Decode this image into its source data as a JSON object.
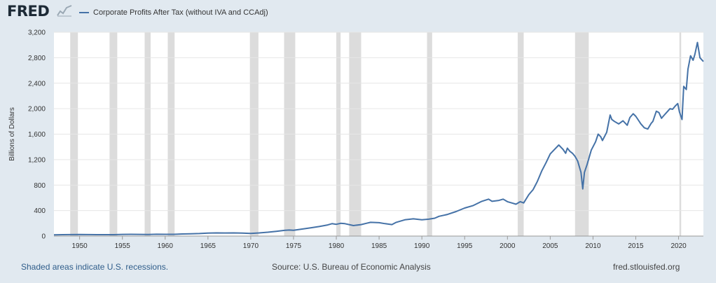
{
  "header": {
    "logo_text": "FRED",
    "logo_icon": "chart-line-icon"
  },
  "footer": {
    "recession_note": "Shaded areas indicate U.S. recessions.",
    "source": "Source: U.S. Bureau of Economic Analysis",
    "site": "fred.stlouisfed.org"
  },
  "colors": {
    "line": "#4572a7",
    "recession": "#dcdcdc",
    "plot_bg": "#ffffff",
    "grid": "#e6e6e6",
    "page_bg": "#e1e9f0"
  },
  "chart_data": {
    "type": "line",
    "title": "",
    "xlabel": "",
    "ylabel": "Billions of Dollars",
    "xlim": [
      1947.0,
      2022.9
    ],
    "ylim": [
      0,
      3200
    ],
    "x_ticks": [
      1950,
      1955,
      1960,
      1965,
      1970,
      1975,
      1980,
      1985,
      1990,
      1995,
      2000,
      2005,
      2010,
      2015,
      2020
    ],
    "y_ticks": [
      0,
      400,
      800,
      1200,
      1600,
      2000,
      2400,
      2800,
      3200
    ],
    "y_tick_labels": [
      "0",
      "400",
      "800",
      "1,200",
      "1,600",
      "2,000",
      "2,400",
      "2,800",
      "3,200"
    ],
    "grid": true,
    "legend_position": "top-left",
    "recessions": [
      [
        1948.9,
        1949.8
      ],
      [
        1953.5,
        1954.4
      ],
      [
        1957.6,
        1958.3
      ],
      [
        1960.3,
        1961.1
      ],
      [
        1969.9,
        1970.9
      ],
      [
        1973.9,
        1975.2
      ],
      [
        1980.0,
        1980.5
      ],
      [
        1981.5,
        1982.9
      ],
      [
        1990.6,
        1991.2
      ],
      [
        2001.2,
        2001.9
      ],
      [
        2007.9,
        2009.5
      ],
      [
        2020.1,
        2020.3
      ]
    ],
    "series": [
      {
        "name": "Corporate Profits After Tax (without IVA and CCAdj)",
        "x": [
          1947.0,
          1948.0,
          1949.0,
          1950.0,
          1951.0,
          1952.0,
          1953.0,
          1954.0,
          1955.0,
          1956.0,
          1957.0,
          1958.0,
          1959.0,
          1960.0,
          1961.0,
          1962.0,
          1963.0,
          1964.0,
          1965.0,
          1966.0,
          1967.0,
          1968.0,
          1969.0,
          1970.0,
          1971.0,
          1972.0,
          1973.0,
          1974.0,
          1974.5,
          1975.0,
          1976.0,
          1977.0,
          1978.0,
          1979.0,
          1979.5,
          1980.0,
          1980.5,
          1981.0,
          1982.0,
          1982.9,
          1983.5,
          1984.0,
          1985.0,
          1985.7,
          1986.5,
          1987.0,
          1988.0,
          1989.0,
          1990.0,
          1990.8,
          1991.5,
          1992.0,
          1993.0,
          1994.0,
          1995.0,
          1996.0,
          1997.0,
          1997.8,
          1998.2,
          1999.0,
          1999.5,
          2000.0,
          2000.5,
          2001.0,
          2001.5,
          2001.9,
          2002.5,
          2003.0,
          2003.5,
          2004.0,
          2004.5,
          2005.0,
          2005.5,
          2006.0,
          2006.5,
          2006.8,
          2007.0,
          2007.3,
          2007.6,
          2007.9,
          2008.2,
          2008.6,
          2008.8,
          2009.0,
          2009.3,
          2009.8,
          2010.3,
          2010.6,
          2010.9,
          2011.1,
          2011.3,
          2011.6,
          2012.0,
          2012.2,
          2012.5,
          2013.0,
          2013.5,
          2014.0,
          2014.3,
          2014.7,
          2015.0,
          2015.3,
          2015.6,
          2016.0,
          2016.4,
          2016.8,
          2017.0,
          2017.4,
          2017.7,
          2018.0,
          2018.2,
          2018.6,
          2019.0,
          2019.3,
          2019.6,
          2019.9,
          2020.1,
          2020.4,
          2020.6,
          2020.9,
          2021.1,
          2021.4,
          2021.7,
          2021.9,
          2022.2,
          2022.5,
          2022.9
        ],
        "values": [
          20,
          22,
          23,
          25,
          23,
          22,
          22,
          22,
          26,
          27,
          26,
          24,
          29,
          28,
          28,
          33,
          36,
          40,
          46,
          50,
          48,
          50,
          47,
          42,
          50,
          60,
          75,
          90,
          95,
          90,
          110,
          130,
          150,
          175,
          195,
          185,
          200,
          195,
          165,
          180,
          200,
          215,
          210,
          195,
          180,
          215,
          255,
          270,
          255,
          265,
          280,
          310,
          340,
          385,
          440,
          480,
          545,
          580,
          545,
          560,
          580,
          540,
          520,
          500,
          540,
          520,
          650,
          730,
          860,
          1020,
          1150,
          1290,
          1360,
          1430,
          1360,
          1300,
          1380,
          1330,
          1300,
          1250,
          1180,
          1000,
          740,
          1000,
          1120,
          1350,
          1480,
          1600,
          1560,
          1500,
          1550,
          1630,
          1900,
          1830,
          1800,
          1760,
          1810,
          1740,
          1860,
          1920,
          1880,
          1820,
          1760,
          1700,
          1680,
          1770,
          1800,
          1960,
          1940,
          1850,
          1880,
          1940,
          2000,
          1990,
          2040,
          2080,
          1950,
          1830,
          2350,
          2300,
          2620,
          2830,
          2760,
          2850,
          3040,
          2800,
          2740
        ]
      }
    ]
  }
}
